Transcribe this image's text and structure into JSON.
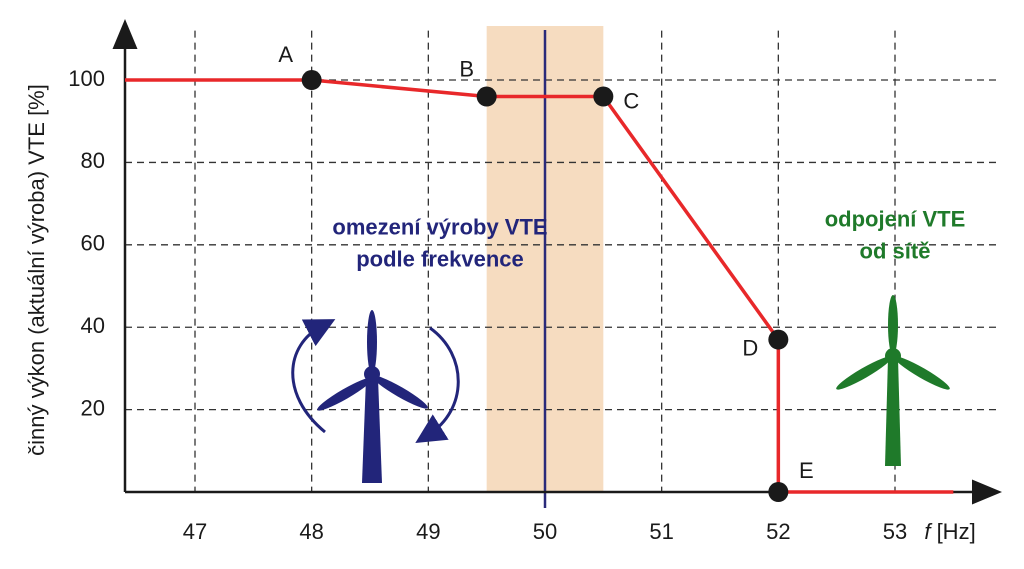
{
  "chart_data": {
    "type": "line",
    "y_label": "činný výkon (aktuální výroba) VTE [%]",
    "x_label_var": "f",
    "x_label_unit": "[Hz]",
    "xlim": [
      46.4,
      53.9
    ],
    "ylim": [
      0,
      112
    ],
    "xticks": [
      47,
      48,
      49,
      50,
      51,
      52,
      53
    ],
    "yticks": [
      20,
      40,
      60,
      80,
      100
    ],
    "grid": true,
    "band": [
      49.5,
      50.5
    ],
    "band_color": "#f6dcc0",
    "vline": 50,
    "vline_color": "#2a2a7a",
    "series": [
      {
        "color": "#e8282a",
        "x": [
          46.4,
          48,
          49.5,
          50.5,
          52,
          52,
          53.5
        ],
        "values": [
          100,
          100,
          96,
          96,
          37,
          0,
          0
        ],
        "point_labels": [
          null,
          "A",
          "B",
          "C",
          "D",
          "E",
          null
        ]
      }
    ],
    "annotations": [
      {
        "lines": [
          "omezení výroby VTE",
          "podle frekvence"
        ],
        "color": "#22257a",
        "x": 49.1,
        "y": 60
      },
      {
        "lines": [
          "odpojení VTE",
          "od sítě"
        ],
        "color": "#1f7a2a",
        "x": 53.0,
        "y": 62
      }
    ]
  }
}
